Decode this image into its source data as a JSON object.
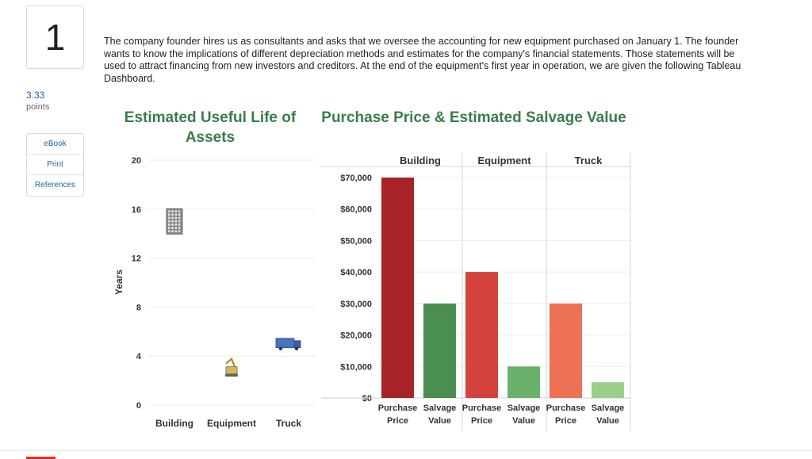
{
  "question": {
    "number": "1",
    "points_value": "3.33",
    "points_label": "points"
  },
  "side_links": [
    "eBook",
    "Print",
    "References"
  ],
  "intro_text": "The company founder hires us as consultants and asks that we oversee the accounting for new equipment purchased on January 1. The founder wants to know the implications of different depreciation methods and estimates for the company's financial statements. Those statements will be used to attract financing from new investors and creditors. At the end of the equipment's first year in operation, we are given the following Tableau Dashboard.",
  "colors": {
    "accent_green": "#3a7d4b",
    "link_blue": "#2561a8"
  },
  "chart_data": [
    {
      "type": "scatter",
      "title": "Estimated Useful Life of Assets",
      "ylabel": "Years",
      "ylim": [
        0,
        20
      ],
      "yticks": [
        "0",
        "4",
        "8",
        "12",
        "16",
        "20"
      ],
      "categories": [
        "Building",
        "Equipment",
        "Truck"
      ],
      "values": [
        15,
        3,
        5
      ],
      "icons": [
        "building-icon",
        "excavator-icon",
        "truck-icon"
      ]
    },
    {
      "type": "bar",
      "title": "Purchase Price & Estimated Salvage Value",
      "ylim": [
        0,
        70000
      ],
      "yticks": [
        "$0",
        "$10,000",
        "$20,000",
        "$30,000",
        "$40,000",
        "$50,000",
        "$60,000",
        "$70,000"
      ],
      "groups": [
        {
          "name": "Building",
          "bars": [
            {
              "label": "Purchase Price",
              "value": 70000,
              "color": "#a82327"
            },
            {
              "label": "Salvage Value",
              "value": 30000,
              "color": "#4a8f4e"
            }
          ]
        },
        {
          "name": "Equipment",
          "bars": [
            {
              "label": "Purchase Price",
              "value": 40000,
              "color": "#d4433b"
            },
            {
              "label": "Salvage Value",
              "value": 10000,
              "color": "#6ab26c"
            }
          ]
        },
        {
          "name": "Truck",
          "bars": [
            {
              "label": "Purchase Price",
              "value": 30000,
              "color": "#ec7155"
            },
            {
              "label": "Salvage Value",
              "value": 5000,
              "color": "#9acf86"
            }
          ]
        }
      ]
    }
  ]
}
